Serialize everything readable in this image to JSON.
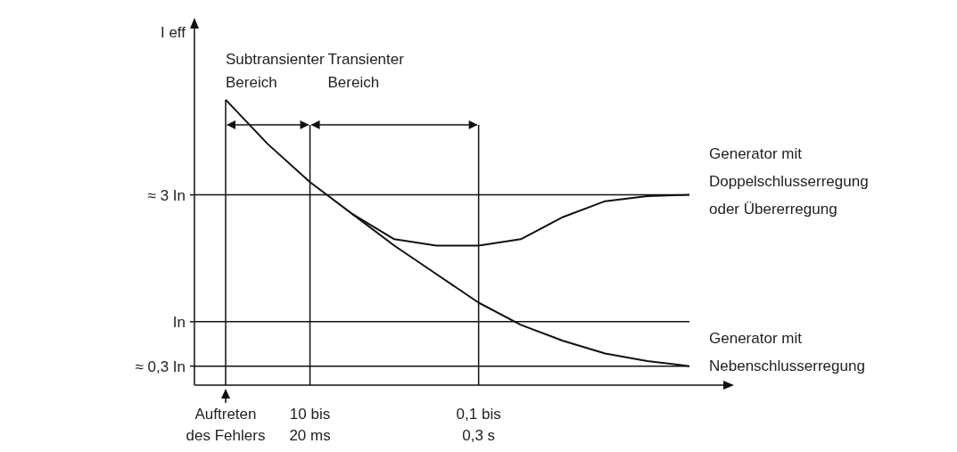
{
  "chart_data": {
    "type": "line",
    "ylabel": "I eff",
    "grid": "y",
    "marker": "none",
    "line_style": "solid",
    "ylim": [
      0,
      5.65
    ],
    "yticks": [
      {
        "value": 3,
        "label": "≈ 3 In"
      },
      {
        "value": 1,
        "label": "In"
      },
      {
        "value": 0.3,
        "label": "≈ 0,3 In"
      }
    ],
    "categories": [
      "Auftreten\ndes Fehlers",
      null,
      "10 bis\n20 ms",
      null,
      null,
      null,
      "0,1 bis\n0,3 s",
      null,
      null,
      null,
      null,
      null
    ],
    "series": [
      {
        "name": "Generator mit Doppelschlusserregung oder Übererregung",
        "color": "#111111",
        "values": [
          null,
          null,
          null,
          2.7,
          2.3,
          2.2,
          2.2,
          2.3,
          2.65,
          2.9,
          2.98,
          3.0
        ]
      },
      {
        "name": "Generator mit Nebenschlusserregung",
        "color": "#111111",
        "values": [
          4.5,
          3.8,
          3.2,
          2.7,
          2.2,
          1.75,
          1.3,
          0.95,
          0.7,
          0.5,
          0.38,
          0.3
        ]
      }
    ],
    "ref_lines": [
      {
        "axis": "x",
        "value": "Auftreten\ndes Fehlers",
        "color": "#111111"
      },
      {
        "axis": "x",
        "value": "10 bis\n20 ms",
        "color": "#111111"
      },
      {
        "axis": "x",
        "value": "0,1 bis\n0,3 s",
        "color": "#111111"
      }
    ],
    "annotations": [
      "Subtransienter\nBereich",
      "Transienter\nBereich"
    ]
  }
}
